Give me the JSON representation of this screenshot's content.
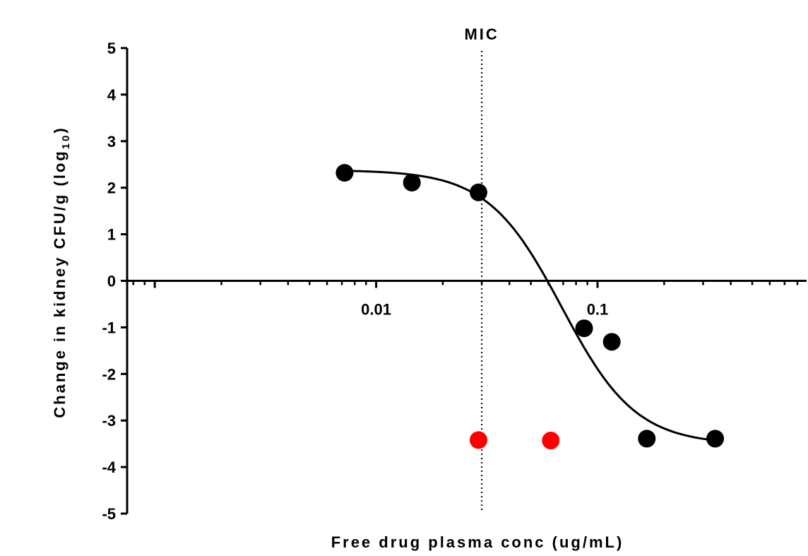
{
  "chart_data": {
    "type": "scatter",
    "xlabel": "Free drug plasma conc (ug/mL)",
    "ylabel_main": "Change in kidney CFU/g (log",
    "ylabel_sub": "10",
    "ylabel_close": ")",
    "x_scale": "log",
    "xlim": [
      0.00075,
      0.88
    ],
    "ylim": [
      -5,
      5
    ],
    "y_ticks": [
      {
        "value": 5,
        "label": "5"
      },
      {
        "value": 4,
        "label": "4"
      },
      {
        "value": 3,
        "label": "3"
      },
      {
        "value": 2,
        "label": "2"
      },
      {
        "value": 1,
        "label": "1"
      },
      {
        "value": 0,
        "label": "0"
      },
      {
        "value": -1,
        "label": "-1"
      },
      {
        "value": -2,
        "label": "-2"
      },
      {
        "value": -3,
        "label": "-3"
      },
      {
        "value": -4,
        "label": "-4"
      },
      {
        "value": -5,
        "label": "-5"
      }
    ],
    "x_ticks": [
      {
        "value": 0.01,
        "label": "0.01"
      },
      {
        "value": 0.1,
        "label": "0.1"
      }
    ],
    "mic": {
      "value": 0.03,
      "label": "MIC"
    },
    "series": [
      {
        "color": "#000000",
        "points": [
          {
            "x": 0.0072,
            "y": 2.32
          },
          {
            "x": 0.0145,
            "y": 2.11
          },
          {
            "x": 0.029,
            "y": 1.9
          },
          {
            "x": 0.087,
            "y": -1.02
          },
          {
            "x": 0.116,
            "y": -1.31
          },
          {
            "x": 0.167,
            "y": -3.39
          },
          {
            "x": 0.34,
            "y": -3.39
          }
        ]
      },
      {
        "color": "#ff0000",
        "points": [
          {
            "x": 0.029,
            "y": -3.42
          },
          {
            "x": 0.0615,
            "y": -3.43
          }
        ]
      }
    ],
    "fit_curve": {
      "color": "#000000",
      "top": 2.38,
      "bottom": -3.52,
      "ec50": 0.069,
      "hill": 2.6,
      "x_range": [
        0.0072,
        0.34
      ]
    }
  }
}
